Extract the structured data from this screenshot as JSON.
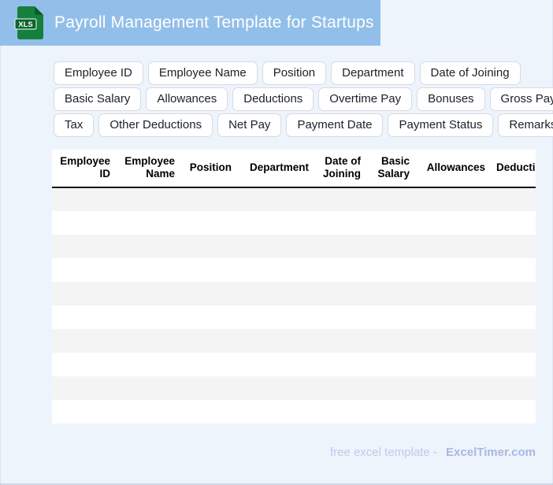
{
  "header": {
    "title": "Payroll Management Template for Startups",
    "file_icon_label": "XLS"
  },
  "chips": {
    "rows": [
      [
        "Employee ID",
        "Employee Name",
        "Position",
        "Department",
        "Date of Joining"
      ],
      [
        "Basic Salary",
        "Allowances",
        "Deductions",
        "Overtime Pay",
        "Bonuses",
        "Gross Pay"
      ],
      [
        "Tax",
        "Other Deductions",
        "Net Pay",
        "Payment Date",
        "Payment Status",
        "Remarks"
      ]
    ]
  },
  "table": {
    "columns": [
      "Employee ID",
      "Employee Name",
      "Position",
      "Department",
      "Date of Joining",
      "Basic Salary",
      "Allowances",
      "Deductions"
    ],
    "empty_row_count": 10
  },
  "footer": {
    "label": "free excel template -",
    "brand": "ExcelTimer.com"
  },
  "colors": {
    "banner_blue": "#92bfe9",
    "page_background": "#eef4fb",
    "icon_green": "#15803d",
    "icon_green_dark": "#0e6330",
    "row_stripe": "#f4f4f5",
    "header_border": "#141414",
    "chip_border": "#d5dbe5",
    "footer_text": "#bfcaec",
    "footer_brand": "#a9b8e2"
  }
}
